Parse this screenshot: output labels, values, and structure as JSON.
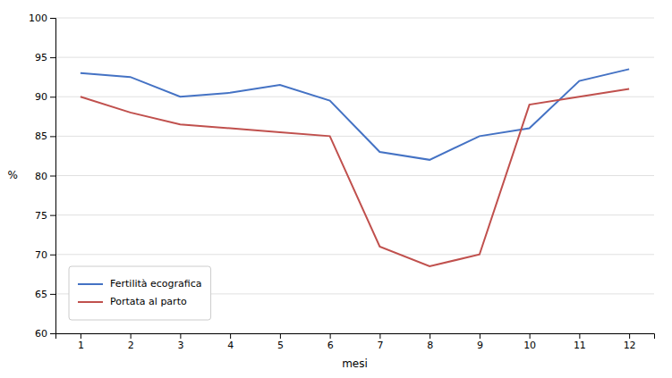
{
  "chart_data": {
    "type": "line",
    "x": [
      1,
      2,
      3,
      4,
      5,
      6,
      7,
      8,
      9,
      10,
      11,
      12
    ],
    "series": [
      {
        "name": "Fertilità ecografica",
        "color": "#4472C4",
        "values": [
          93,
          92.5,
          90,
          90.5,
          91.5,
          89.5,
          83,
          82,
          85,
          86,
          92,
          93.5
        ]
      },
      {
        "name": "Portata al parto",
        "color": "#C0504D",
        "values": [
          90,
          88,
          86.5,
          86,
          85.5,
          85,
          71,
          68.5,
          70,
          89,
          90,
          91
        ]
      }
    ],
    "xlabel": "mesi",
    "ylabel": "%",
    "xlim": [
      0.5,
      12.5
    ],
    "xticks": [
      1,
      2,
      3,
      4,
      5,
      6,
      7,
      8,
      9,
      10,
      11,
      12
    ],
    "ylim": [
      60,
      100
    ],
    "yticks": [
      60,
      65,
      70,
      75,
      80,
      85,
      90,
      95,
      100
    ],
    "grid": "y",
    "legend": "lower left"
  }
}
